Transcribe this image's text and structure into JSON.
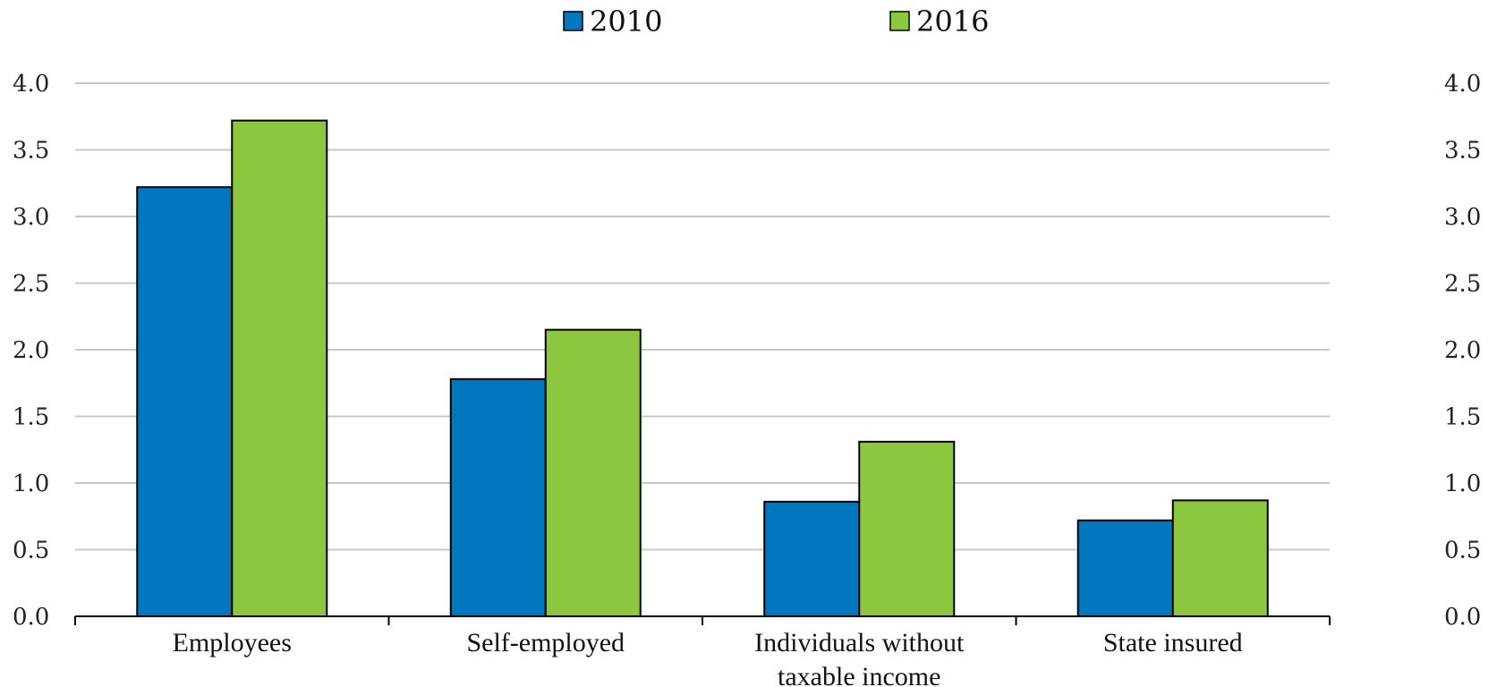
{
  "chart_data": {
    "type": "bar",
    "categories": [
      [
        "Employees"
      ],
      [
        "Self-employed"
      ],
      [
        "Individuals without",
        "taxable income"
      ],
      [
        "State insured"
      ]
    ],
    "series": [
      {
        "name": "2010",
        "color": "#0077BE",
        "values": [
          3.22,
          1.78,
          0.86,
          0.72
        ]
      },
      {
        "name": "2016",
        "color": "#8DC63F",
        "values": [
          3.72,
          2.15,
          1.31,
          0.87
        ]
      }
    ],
    "ylim": [
      0,
      4
    ],
    "yticks": [
      "0.0",
      "0.5",
      "1.0",
      "1.5",
      "2.0",
      "2.5",
      "3.0",
      "3.5",
      "4.0"
    ],
    "ytick_values": [
      0,
      0.5,
      1.0,
      1.5,
      2.0,
      2.5,
      3.0,
      3.5,
      4.0
    ],
    "secondary_axis": true,
    "grid": true,
    "legend_position": "top-center"
  }
}
